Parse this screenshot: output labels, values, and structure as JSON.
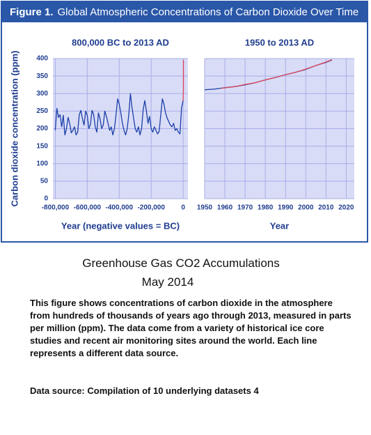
{
  "figure": {
    "label": "Figure 1.",
    "title": "Global Atmospheric Concentrations of Carbon Dioxide Over Time"
  },
  "chart_data": [
    {
      "type": "line",
      "title": "800,000 BC to 2013 AD",
      "x_label": "Year (negative values = BC)",
      "y_label": "Carbon dioxide concentration (ppm)",
      "xlim": [
        -815000,
        30000
      ],
      "ylim": [
        0,
        400
      ],
      "xticks": [
        {
          "value": -800000,
          "label": "-800,000"
        },
        {
          "value": -600000,
          "label": "-600,000"
        },
        {
          "value": -400000,
          "label": "-400,000"
        },
        {
          "value": -200000,
          "label": "-200,000"
        },
        0
      ],
      "yticks": [
        0,
        50,
        100,
        150,
        200,
        250,
        300,
        350,
        400
      ],
      "grid": true,
      "series": [
        {
          "color": "#1b3fa8",
          "x": [
            -800000,
            -790000,
            -780000,
            -770000,
            -760000,
            -750000,
            -740000,
            -730000,
            -720000,
            -710000,
            -700000,
            -690000,
            -680000,
            -670000,
            -660000,
            -650000,
            -640000,
            -630000,
            -620000,
            -610000,
            -600000,
            -590000,
            -580000,
            -570000,
            -560000,
            -550000,
            -540000,
            -530000,
            -520000,
            -510000,
            -500000,
            -490000,
            -480000,
            -470000,
            -460000,
            -450000,
            -440000,
            -430000,
            -420000,
            -410000,
            -400000,
            -390000,
            -380000,
            -370000,
            -360000,
            -350000,
            -340000,
            -330000,
            -320000,
            -310000,
            -300000,
            -290000,
            -280000,
            -270000,
            -260000,
            -250000,
            -240000,
            -230000,
            -220000,
            -210000,
            -200000,
            -190000,
            -180000,
            -170000,
            -160000,
            -150000,
            -140000,
            -130000,
            -120000,
            -110000,
            -100000,
            -90000,
            -80000,
            -70000,
            -60000,
            -50000,
            -40000,
            -30000,
            -20000,
            -10000,
            0
          ],
          "values": [
            195,
            258,
            232,
            240,
            205,
            238,
            182,
            200,
            232,
            215,
            188,
            195,
            205,
            182,
            190,
            240,
            252,
            228,
            210,
            250,
            238,
            200,
            212,
            252,
            240,
            205,
            190,
            245,
            228,
            200,
            210,
            250,
            235,
            215,
            195,
            205,
            182,
            200,
            240,
            285,
            270,
            245,
            215,
            195,
            182,
            200,
            240,
            300,
            260,
            230,
            200,
            190,
            205,
            182,
            200,
            255,
            280,
            250,
            215,
            235,
            200,
            190,
            205,
            195,
            185,
            192,
            240,
            285,
            270,
            245,
            230,
            220,
            210,
            205,
            215,
            195,
            200,
            190,
            185,
            260,
            280
          ]
        },
        {
          "color": "#e0455a",
          "x": [
            0,
            1950,
            2013
          ],
          "values": [
            280,
            311,
            396
          ]
        }
      ]
    },
    {
      "type": "line",
      "title": "1950 to 2013 AD",
      "x_label": "Year",
      "xlim": [
        1950,
        2024
      ],
      "ylim": [
        0,
        400
      ],
      "xticks": [
        1950,
        1960,
        1970,
        1980,
        1990,
        2000,
        2010,
        2020
      ],
      "yticks": [
        0,
        50,
        100,
        150,
        200,
        250,
        300,
        350,
        400
      ],
      "grid": true,
      "series": [
        {
          "color": "#1b3fa8",
          "x": [
            1950,
            1955,
            1960,
            1965,
            1970,
            1975,
            1980,
            1985,
            1990,
            1995,
            2000,
            2005,
            2010,
            2013
          ],
          "values": [
            311,
            313,
            317,
            320,
            325,
            331,
            339,
            346,
            354,
            361,
            369,
            380,
            389,
            396
          ]
        },
        {
          "color": "#e0455a",
          "x": [
            1958,
            1965,
            1970,
            1975,
            1980,
            1985,
            1990,
            1995,
            2000,
            2005,
            2010,
            2013
          ],
          "values": [
            315,
            320,
            326,
            331,
            339,
            346,
            354,
            361,
            370,
            380,
            390,
            397
          ]
        }
      ]
    }
  ],
  "caption": {
    "title": "Greenhouse Gas CO2 Accumulations",
    "date": "May 2014",
    "description": "This figure shows concentrations of carbon dioxide in the atmosphere from hundreds of thousands of years ago through 2013, measured in parts per million (ppm). The data come from a variety of historical ice core studies and recent air monitoring sites around the world. Each line represents a different data source.",
    "source": "Data source: Compilation of 10 underlying datasets 4"
  }
}
